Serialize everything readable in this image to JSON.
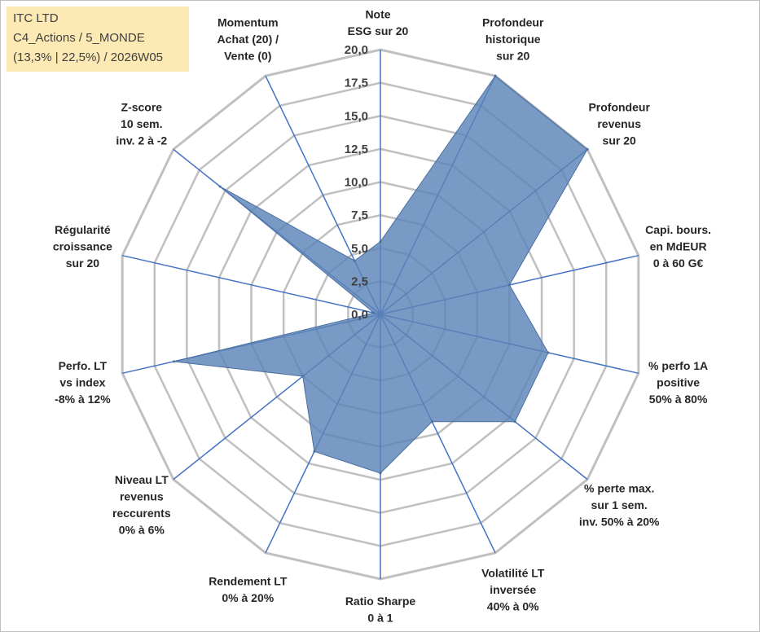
{
  "info": {
    "company": "ITC LTD",
    "portfolio": "C4_Actions / 5_MONDE",
    "stats": "(13,3% | 22,5%) / 2026W05"
  },
  "chart_data": {
    "type": "radar",
    "title": "",
    "axes": [
      {
        "label": [
          "Note",
          "ESG sur 20"
        ]
      },
      {
        "label": [
          "Profondeur",
          "historique",
          "sur 20"
        ]
      },
      {
        "label": [
          "Profondeur",
          "revenus",
          "sur 20"
        ]
      },
      {
        "label": [
          "Capi. bours.",
          "en MdEUR",
          "0 à 60 G€"
        ]
      },
      {
        "label": [
          "% perfo 1A",
          "positive",
          "50% à 80%"
        ]
      },
      {
        "label": [
          "% perte max.",
          "sur 1 sem.",
          "inv. 50% à 20%"
        ]
      },
      {
        "label": [
          "Volatilité LT",
          "inversée",
          "40% à 0%"
        ]
      },
      {
        "label": [
          "Ratio Sharpe",
          "0 à 1"
        ]
      },
      {
        "label": [
          "Rendement LT",
          "0% à 20%"
        ]
      },
      {
        "label": [
          "Niveau LT",
          "revenus",
          "reccurents",
          "0% à 6%"
        ]
      },
      {
        "label": [
          "Perfo. LT",
          "vs index",
          "-8% à 12%"
        ]
      },
      {
        "label": [
          "Régularité",
          "croissance",
          "sur 20"
        ]
      },
      {
        "label": [
          "Z-score",
          "10 sem.",
          "inv. 2 à -2"
        ]
      },
      {
        "label": [
          "Momentum",
          "Achat (20) /",
          "Vente (0)"
        ]
      }
    ],
    "rmin": 0,
    "rmax": 20,
    "tick_step": 2.5,
    "tick_labels": [
      "0,0",
      "2,5",
      "5,0",
      "7,5",
      "10,0",
      "12,5",
      "15,0",
      "17,5",
      "20,0"
    ],
    "series": [
      {
        "name": "ITC LTD",
        "color": "#5b84b8",
        "values": [
          5.5,
          20,
          20,
          10,
          13,
          13,
          9,
          12,
          11.5,
          7.5,
          16,
          0.5,
          15.5,
          4.5
        ]
      }
    ],
    "colors": {
      "grid": "#c0c0c0",
      "spoke": "#4472c4",
      "fill": "#5b84b8",
      "info_bg": "#fde9b3"
    }
  }
}
